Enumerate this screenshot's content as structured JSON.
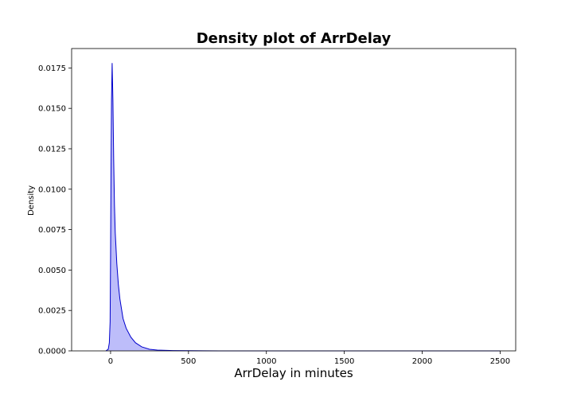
{
  "chart_data": {
    "type": "area",
    "title": "Density plot of ArrDelay",
    "xlabel": "ArrDelay in minutes",
    "ylabel": "Density",
    "xlim": [
      -250,
      2600
    ],
    "ylim": [
      0,
      0.0187
    ],
    "grid": false,
    "legend": "none",
    "x_ticks": [
      0,
      500,
      1000,
      1500,
      2000,
      2500
    ],
    "x_tick_labels": [
      "0",
      "500",
      "1000",
      "1500",
      "2000",
      "2500"
    ],
    "y_ticks": [
      0,
      0.0025,
      0.005,
      0.0075,
      0.01,
      0.0125,
      0.015,
      0.0175
    ],
    "y_tick_labels": [
      "0.0000",
      "0.0025",
      "0.0050",
      "0.0075",
      "0.0100",
      "0.0125",
      "0.0150",
      "0.0175"
    ],
    "line_color": "#0000cc",
    "fill_color": "#bdbdfa",
    "series": [
      {
        "x": [
          -30,
          -15,
          -8,
          -3,
          0,
          3,
          6,
          10,
          15,
          20,
          25,
          30,
          40,
          50,
          60,
          80,
          100,
          130,
          160,
          200,
          250,
          300,
          400,
          500,
          700,
          1000,
          1500,
          2000,
          2500
        ],
        "y": [
          0,
          0.0001,
          0.0005,
          0.0018,
          0.006,
          0.0115,
          0.0155,
          0.0178,
          0.0155,
          0.0118,
          0.009,
          0.0073,
          0.0054,
          0.0041,
          0.0032,
          0.002,
          0.0014,
          0.00085,
          0.0005,
          0.00025,
          0.0001,
          5e-05,
          2e-05,
          1e-05,
          0,
          0,
          0,
          0,
          0
        ]
      }
    ]
  }
}
